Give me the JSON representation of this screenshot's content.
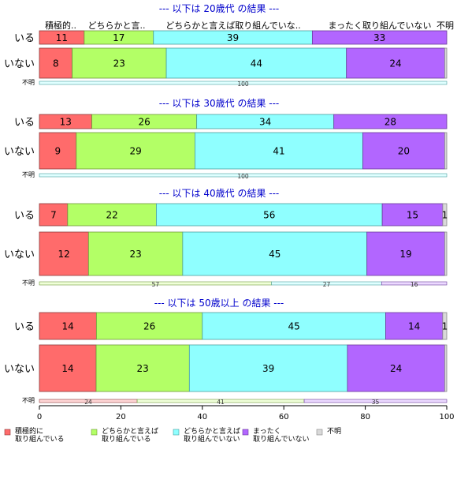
{
  "chart_data": {
    "type": "bar",
    "orientation": "horizontal-stacked-100",
    "xlim": [
      0,
      100
    ],
    "xticks": [
      "0",
      "20",
      "40",
      "60",
      "80",
      "100"
    ],
    "category_headers": [
      "積極的..",
      "どちらかと言..",
      "どちらかと言えば取り組んでいな..",
      "まったく取り組んでいない",
      "不明"
    ],
    "legend": [
      {
        "line1": "積極的に",
        "line2": "取り組んでいる",
        "color": "#ff6b6b"
      },
      {
        "line1": "どちらかと言えば",
        "line2": "取り組んでいる",
        "color": "#b3ff66"
      },
      {
        "line1": "どちらかと言えば",
        "line2": "取り組んでいない",
        "color": "#8fffff"
      },
      {
        "line1": "まったく",
        "line2": "取り組んでいない",
        "color": "#b266ff"
      },
      {
        "line1": "不明",
        "line2": "",
        "color": "#d9d9d9"
      }
    ],
    "panels": [
      {
        "title": "--- 以下は 20歳代 の結果 ---",
        "rows": [
          {
            "label": "いる",
            "values": [
              11,
              17,
              39,
              33,
              0
            ],
            "labels": [
              "11",
              "17",
              "39",
              "33",
              ""
            ]
          },
          {
            "label": "いない",
            "values": [
              8,
              23,
              44,
              24,
              0.5
            ],
            "labels": [
              "8",
              "23",
              "44",
              "24",
              ""
            ]
          }
        ],
        "unknown": {
          "label": "不明",
          "values": [
            0,
            0,
            100,
            0,
            0
          ],
          "labels": [
            "",
            "",
            "100",
            "",
            ""
          ]
        }
      },
      {
        "title": "--- 以下は 30歳代 の結果 ---",
        "rows": [
          {
            "label": "いる",
            "values": [
              13,
              26,
              34,
              28,
              0
            ],
            "labels": [
              "13",
              "26",
              "34",
              "28",
              ""
            ]
          },
          {
            "label": "いない",
            "values": [
              9,
              29,
              41,
              20,
              0.5
            ],
            "labels": [
              "9",
              "29",
              "41",
              "20",
              ""
            ]
          }
        ],
        "unknown": {
          "label": "不明",
          "values": [
            0,
            0,
            100,
            0,
            0
          ],
          "labels": [
            "",
            "",
            "100",
            "",
            ""
          ]
        }
      },
      {
        "title": "--- 以下は 40歳代 の結果 ---",
        "rows": [
          {
            "label": "いる",
            "values": [
              7,
              22,
              56,
              15,
              1
            ],
            "labels": [
              "7",
              "22",
              "56",
              "15",
              "1"
            ]
          },
          {
            "label": "いない",
            "values": [
              12,
              23,
              45,
              19,
              0.5
            ],
            "labels": [
              "12",
              "23",
              "45",
              "19",
              ""
            ]
          }
        ],
        "unknown": {
          "label": "不明",
          "values": [
            0,
            57,
            27,
            16,
            0
          ],
          "labels": [
            "",
            "57",
            "27",
            "16",
            ""
          ]
        }
      },
      {
        "title": "--- 以下は 50歳以上 の結果 ---",
        "rows": [
          {
            "label": "いる",
            "values": [
              14,
              26,
              45,
              14,
              1
            ],
            "labels": [
              "14",
              "26",
              "45",
              "14",
              "1"
            ]
          },
          {
            "label": "いない",
            "values": [
              14,
              23,
              39,
              24,
              0.5
            ],
            "labels": [
              "14",
              "23",
              "39",
              "24",
              ""
            ]
          }
        ],
        "unknown": {
          "label": "不明",
          "values": [
            24,
            41,
            0,
            35,
            0
          ],
          "labels": [
            "24",
            "41",
            "",
            "35",
            ""
          ]
        }
      }
    ]
  }
}
